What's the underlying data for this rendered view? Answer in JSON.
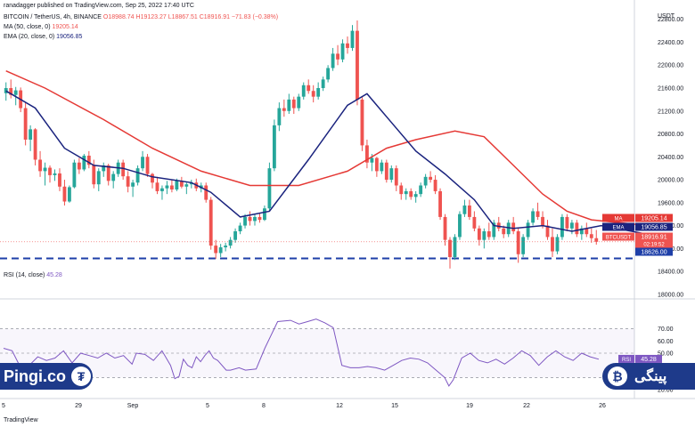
{
  "watermark": "ranadagger published on TradingView.com, Sep 25, 2022 17:40 UTC",
  "header": {
    "symbol": "BITCOIN / TetherUS, 4h, BINANCE",
    "ohlc": "O18988.74  H19123.27  L18867.51  C18916.91  −71.83 (−0.38%)",
    "ma": "MA (50, close, 0)",
    "ma_value": "19205.14",
    "ema": "EMA (20, close, 0)",
    "ema_value": "19056.85",
    "rsi": "RSI (14, close)",
    "rsi_value": "45.28"
  },
  "brand": {
    "left_text": "Pingi.co",
    "left_icon": "tether-coin-icon",
    "right_text": "پینگی",
    "right_icon": "bitcoin-coin-icon"
  },
  "footer": {
    "logo": "TradingView"
  },
  "colors": {
    "up": "#26a69a",
    "down": "#ef5350",
    "ma": "#e53935",
    "ema": "#1a237e",
    "rsi": "#7e57c2",
    "support": "#1e3fa8",
    "brand": "#1e3a8a",
    "price_tag": "#ef5350"
  },
  "chart_data": {
    "type": "candlestick",
    "currency": "USDT",
    "x_ticks": [
      "5",
      "29",
      "Sep",
      "5",
      "8",
      "12",
      "15",
      "19",
      "22",
      "26"
    ],
    "y_ticks": [
      18000,
      18400,
      18800,
      19200,
      19600,
      20000,
      20400,
      20800,
      21200,
      21600,
      22000,
      22400,
      22800
    ],
    "ylim": [
      17920,
      22920
    ],
    "support_level": 18626.0,
    "price_labels": [
      {
        "label": "MA",
        "value": "19205.14"
      },
      {
        "label": "EMA",
        "value": "19056.85"
      },
      {
        "label": "BTCUSDT",
        "value": "18916.91",
        "sub": "02:19:52"
      },
      {
        "label": "",
        "value": "18626.00"
      }
    ],
    "candles": [
      [
        21510,
        21700,
        21380,
        21600
      ],
      [
        21600,
        21750,
        21420,
        21480
      ],
      [
        21480,
        21620,
        21300,
        21560
      ],
      [
        21560,
        21610,
        21180,
        21250
      ],
      [
        21250,
        21350,
        20600,
        20700
      ],
      [
        20700,
        20950,
        20500,
        20880
      ],
      [
        20880,
        20900,
        20250,
        20350
      ],
      [
        20350,
        20500,
        20050,
        20150
      ],
      [
        20150,
        20300,
        19900,
        20210
      ],
      [
        20210,
        20250,
        19950,
        20080
      ],
      [
        20080,
        20180,
        19980,
        20110
      ],
      [
        20110,
        20200,
        19800,
        19880
      ],
      [
        19880,
        20000,
        19550,
        19620
      ],
      [
        19620,
        19900,
        19600,
        19870
      ],
      [
        19870,
        20350,
        19850,
        20300
      ],
      [
        20300,
        20380,
        20100,
        20180
      ],
      [
        20180,
        20450,
        20150,
        20420
      ],
      [
        20420,
        20500,
        20200,
        20260
      ],
      [
        20260,
        20350,
        19850,
        19920
      ],
      [
        19920,
        20200,
        19800,
        20150
      ],
      [
        20150,
        20300,
        20050,
        20250
      ],
      [
        20250,
        20280,
        19900,
        19980
      ],
      [
        19980,
        20150,
        19850,
        20100
      ],
      [
        20100,
        20350,
        20050,
        20300
      ],
      [
        20300,
        20350,
        20000,
        20060
      ],
      [
        20060,
        20150,
        19780,
        19880
      ],
      [
        19880,
        20000,
        19700,
        19950
      ],
      [
        19950,
        20250,
        19900,
        20200
      ],
      [
        20200,
        20500,
        20150,
        20400
      ],
      [
        20400,
        20450,
        20050,
        20100
      ],
      [
        20100,
        20120,
        19850,
        19950
      ],
      [
        19950,
        20050,
        19750,
        19800
      ],
      [
        19800,
        19900,
        19650,
        19850
      ],
      [
        19850,
        19980,
        19750,
        19900
      ],
      [
        19900,
        20000,
        19780,
        19830
      ],
      [
        19830,
        20020,
        19800,
        19980
      ],
      [
        19980,
        20050,
        19850,
        19880
      ],
      [
        19880,
        19950,
        19750,
        19920
      ],
      [
        19920,
        20000,
        19850,
        19950
      ],
      [
        19950,
        20020,
        19800,
        19850
      ],
      [
        19850,
        19950,
        19780,
        19900
      ],
      [
        19900,
        19950,
        19600,
        19650
      ],
      [
        19650,
        19700,
        18780,
        18850
      ],
      [
        18850,
        18950,
        18620,
        18720
      ],
      [
        18720,
        18880,
        18650,
        18820
      ],
      [
        18820,
        18900,
        18750,
        18850
      ],
      [
        18850,
        19000,
        18800,
        18950
      ],
      [
        18950,
        19150,
        18900,
        19100
      ],
      [
        19100,
        19250,
        19050,
        19200
      ],
      [
        19200,
        19400,
        19150,
        19350
      ],
      [
        19350,
        19450,
        19200,
        19280
      ],
      [
        19280,
        19400,
        19200,
        19350
      ],
      [
        19350,
        19420,
        19250,
        19300
      ],
      [
        19300,
        19550,
        19280,
        19500
      ],
      [
        19500,
        20300,
        19450,
        20200
      ],
      [
        20200,
        21050,
        20150,
        20950
      ],
      [
        20950,
        21350,
        20850,
        21250
      ],
      [
        21250,
        21400,
        21100,
        21200
      ],
      [
        21200,
        21500,
        21150,
        21400
      ],
      [
        21400,
        21450,
        21150,
        21250
      ],
      [
        21250,
        21500,
        21200,
        21450
      ],
      [
        21450,
        21700,
        21400,
        21650
      ],
      [
        21650,
        21750,
        21500,
        21550
      ],
      [
        21550,
        21650,
        21350,
        21450
      ],
      [
        21450,
        21700,
        21400,
        21600
      ],
      [
        21600,
        21800,
        21550,
        21750
      ],
      [
        21750,
        22000,
        21700,
        21950
      ],
      [
        21950,
        22300,
        21900,
        22200
      ],
      [
        22200,
        22350,
        22000,
        22100
      ],
      [
        22100,
        22450,
        22050,
        22380
      ],
      [
        22380,
        22500,
        22200,
        22300
      ],
      [
        22300,
        22700,
        22250,
        22600
      ],
      [
        22600,
        22780,
        21300,
        21400
      ],
      [
        21400,
        21450,
        20500,
        20600
      ],
      [
        20600,
        20700,
        20200,
        20300
      ],
      [
        20300,
        20450,
        20150,
        20380
      ],
      [
        20380,
        20400,
        20050,
        20150
      ],
      [
        20150,
        20350,
        20100,
        20300
      ],
      [
        20300,
        20350,
        19950,
        20000
      ],
      [
        20000,
        20250,
        19950,
        20200
      ],
      [
        20200,
        20250,
        19800,
        19900
      ],
      [
        19900,
        19950,
        19650,
        19750
      ],
      [
        19750,
        19850,
        19650,
        19800
      ],
      [
        19800,
        19850,
        19650,
        19700
      ],
      [
        19700,
        19800,
        19600,
        19750
      ],
      [
        19750,
        19950,
        19700,
        19900
      ],
      [
        19900,
        20100,
        19850,
        20050
      ],
      [
        20050,
        20150,
        19950,
        20000
      ],
      [
        20000,
        20080,
        19750,
        19800
      ],
      [
        19800,
        19850,
        19300,
        19350
      ],
      [
        19350,
        19400,
        18850,
        18950
      ],
      [
        18950,
        19000,
        18450,
        18650
      ],
      [
        18650,
        19050,
        18600,
        19000
      ],
      [
        19000,
        19450,
        18950,
        19400
      ],
      [
        19400,
        19650,
        19350,
        19550
      ],
      [
        19550,
        19650,
        19300,
        19350
      ],
      [
        19350,
        19450,
        19100,
        19150
      ],
      [
        19150,
        19200,
        18850,
        18950
      ],
      [
        18950,
        19150,
        18800,
        19100
      ],
      [
        19100,
        19250,
        18950,
        19000
      ],
      [
        19000,
        19300,
        18950,
        19250
      ],
      [
        19250,
        19350,
        19100,
        19150
      ],
      [
        19150,
        19200,
        18980,
        19050
      ],
      [
        19050,
        19300,
        19000,
        19250
      ],
      [
        19250,
        19350,
        19050,
        19100
      ],
      [
        19100,
        19150,
        18550,
        18700
      ],
      [
        18700,
        19050,
        18650,
        19000
      ],
      [
        19000,
        19300,
        18950,
        19250
      ],
      [
        19250,
        19500,
        19200,
        19450
      ],
      [
        19450,
        19600,
        19300,
        19350
      ],
      [
        19350,
        19450,
        19150,
        19200
      ],
      [
        19200,
        19300,
        18950,
        19000
      ],
      [
        19000,
        19150,
        18650,
        18750
      ],
      [
        18750,
        19050,
        18700,
        19000
      ],
      [
        19000,
        19400,
        18950,
        19350
      ],
      [
        19350,
        19400,
        19100,
        19150
      ],
      [
        19150,
        19300,
        19050,
        19250
      ],
      [
        19250,
        19300,
        19000,
        19050
      ],
      [
        19050,
        19200,
        18950,
        19150
      ],
      [
        19150,
        19250,
        19000,
        19050
      ],
      [
        19050,
        19150,
        18900,
        18980
      ],
      [
        18980,
        19123,
        18867,
        18917
      ]
    ],
    "ma50": [
      [
        0,
        21900
      ],
      [
        8,
        21600
      ],
      [
        20,
        21050
      ],
      [
        30,
        20550
      ],
      [
        40,
        20150
      ],
      [
        50,
        19900
      ],
      [
        60,
        19900
      ],
      [
        70,
        20150
      ],
      [
        78,
        20550
      ],
      [
        84,
        20700
      ],
      [
        92,
        20850
      ],
      [
        98,
        20750
      ],
      [
        104,
        20250
      ],
      [
        110,
        19750
      ],
      [
        115,
        19450
      ],
      [
        120,
        19300
      ],
      [
        131,
        19205
      ]
    ],
    "ema20": [
      [
        0,
        21550
      ],
      [
        6,
        21250
      ],
      [
        12,
        20550
      ],
      [
        18,
        20250
      ],
      [
        24,
        20200
      ],
      [
        30,
        20050
      ],
      [
        38,
        19950
      ],
      [
        42,
        19780
      ],
      [
        48,
        19350
      ],
      [
        54,
        19450
      ],
      [
        62,
        20350
      ],
      [
        70,
        21300
      ],
      [
        74,
        21500
      ],
      [
        78,
        21100
      ],
      [
        84,
        20500
      ],
      [
        90,
        20100
      ],
      [
        96,
        19650
      ],
      [
        100,
        19200
      ],
      [
        104,
        19150
      ],
      [
        110,
        19200
      ],
      [
        116,
        19100
      ],
      [
        122,
        19200
      ],
      [
        131,
        19057
      ]
    ],
    "rsi": {
      "ylim": [
        20,
        80
      ],
      "ticks": [
        20,
        30,
        40,
        50,
        60,
        70
      ],
      "bands": [
        30,
        50,
        70
      ],
      "points": [
        [
          0,
          54
        ],
        [
          4,
          52
        ],
        [
          8,
          38
        ],
        [
          12,
          40
        ],
        [
          16,
          47
        ],
        [
          20,
          44
        ],
        [
          24,
          46
        ],
        [
          28,
          52
        ],
        [
          32,
          42
        ],
        [
          36,
          50
        ],
        [
          40,
          48
        ],
        [
          44,
          46
        ],
        [
          48,
          50
        ],
        [
          52,
          46
        ],
        [
          56,
          48
        ],
        [
          60,
          41
        ],
        [
          62,
          50
        ],
        [
          66,
          49
        ],
        [
          70,
          44
        ],
        [
          74,
          52
        ],
        [
          78,
          40
        ],
        [
          80,
          29
        ],
        [
          82,
          31
        ],
        [
          84,
          45
        ],
        [
          86,
          40
        ],
        [
          88,
          38
        ],
        [
          90,
          47
        ],
        [
          92,
          43
        ],
        [
          94,
          48
        ],
        [
          96,
          52
        ],
        [
          98,
          46
        ],
        [
          100,
          44
        ],
        [
          104,
          36
        ],
        [
          106,
          36
        ],
        [
          110,
          38
        ],
        [
          113,
          36
        ],
        [
          118,
          37
        ],
        [
          122,
          54
        ],
        [
          128,
          76
        ],
        [
          134,
          77
        ],
        [
          138,
          74
        ],
        [
          142,
          76
        ],
        [
          146,
          78
        ],
        [
          150,
          75
        ],
        [
          154,
          71
        ],
        [
          158,
          40
        ],
        [
          162,
          38
        ],
        [
          166,
          38
        ],
        [
          170,
          39
        ],
        [
          174,
          38
        ],
        [
          178,
          36
        ],
        [
          182,
          40
        ],
        [
          186,
          44
        ],
        [
          190,
          46
        ],
        [
          194,
          45
        ],
        [
          198,
          42
        ],
        [
          202,
          36
        ],
        [
          206,
          30
        ],
        [
          208,
          23
        ],
        [
          210,
          28
        ],
        [
          214,
          46
        ],
        [
          218,
          50
        ],
        [
          222,
          44
        ],
        [
          226,
          42
        ],
        [
          230,
          45
        ],
        [
          234,
          41
        ],
        [
          238,
          46
        ],
        [
          242,
          52
        ],
        [
          246,
          48
        ],
        [
          250,
          40
        ],
        [
          254,
          47
        ],
        [
          258,
          52
        ],
        [
          262,
          47
        ],
        [
          266,
          44
        ],
        [
          270,
          50
        ],
        [
          274,
          47
        ],
        [
          278,
          45
        ]
      ],
      "value": 45.28
    }
  }
}
